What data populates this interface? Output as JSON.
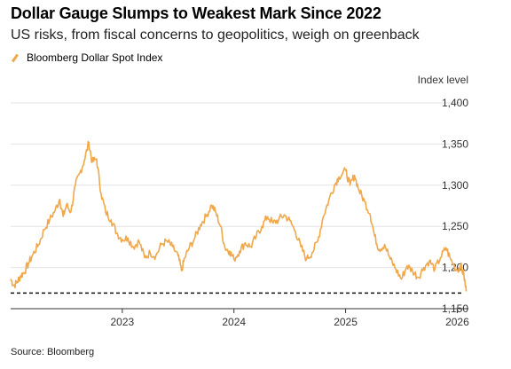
{
  "header": {
    "title": "Dollar Gauge Slumps to Weakest Mark Since 2022",
    "subtitle": "US risks, from fiscal concerns to geopolitics, weigh on greenback"
  },
  "footer": {
    "source": "Source: Bloomberg"
  },
  "chart_data": {
    "type": "line",
    "title": "Dollar Gauge Slumps to Weakest Mark Since 2022",
    "subtitle": "US risks, from fiscal concerns to geopolitics, weigh on greenback",
    "y_unit_label": "Index level",
    "ylim": [
      1150,
      1400
    ],
    "y_ticks": [
      1150,
      1200,
      1250,
      1300,
      1350,
      1400
    ],
    "x_tick_labels": [
      "2023",
      "2024",
      "2025",
      "2026"
    ],
    "xlim": [
      2022.0,
      2026.1
    ],
    "grid": "horizontal",
    "legend_position": "top-left",
    "reference_line": {
      "value": 1169,
      "style": "dashed"
    },
    "series": [
      {
        "name": "Bloomberg Dollar Spot Index",
        "color": "#f0a84a",
        "points": [
          [
            2022.0,
            1186
          ],
          [
            2022.03,
            1178
          ],
          [
            2022.06,
            1183
          ],
          [
            2022.09,
            1190
          ],
          [
            2022.12,
            1194
          ],
          [
            2022.16,
            1205
          ],
          [
            2022.2,
            1216
          ],
          [
            2022.25,
            1228
          ],
          [
            2022.3,
            1246
          ],
          [
            2022.35,
            1258
          ],
          [
            2022.4,
            1270
          ],
          [
            2022.44,
            1283
          ],
          [
            2022.47,
            1262
          ],
          [
            2022.5,
            1276
          ],
          [
            2022.54,
            1268
          ],
          [
            2022.58,
            1300
          ],
          [
            2022.62,
            1315
          ],
          [
            2022.66,
            1330
          ],
          [
            2022.7,
            1352
          ],
          [
            2022.73,
            1328
          ],
          [
            2022.77,
            1332
          ],
          [
            2022.81,
            1290
          ],
          [
            2022.85,
            1268
          ],
          [
            2022.9,
            1258
          ],
          [
            2022.95,
            1242
          ],
          [
            2023.0,
            1234
          ],
          [
            2023.05,
            1236
          ],
          [
            2023.1,
            1225
          ],
          [
            2023.15,
            1232
          ],
          [
            2023.2,
            1212
          ],
          [
            2023.25,
            1218
          ],
          [
            2023.3,
            1214
          ],
          [
            2023.35,
            1228
          ],
          [
            2023.4,
            1232
          ],
          [
            2023.45,
            1225
          ],
          [
            2023.5,
            1214
          ],
          [
            2023.53,
            1196
          ],
          [
            2023.56,
            1212
          ],
          [
            2023.6,
            1224
          ],
          [
            2023.65,
            1236
          ],
          [
            2023.7,
            1252
          ],
          [
            2023.75,
            1262
          ],
          [
            2023.8,
            1276
          ],
          [
            2023.84,
            1266
          ],
          [
            2023.88,
            1250
          ],
          [
            2023.92,
            1224
          ],
          [
            2023.96,
            1220
          ],
          [
            2024.0,
            1210
          ],
          [
            2024.05,
            1220
          ],
          [
            2024.1,
            1230
          ],
          [
            2024.15,
            1225
          ],
          [
            2024.2,
            1238
          ],
          [
            2024.25,
            1250
          ],
          [
            2024.3,
            1262
          ],
          [
            2024.35,
            1254
          ],
          [
            2024.4,
            1258
          ],
          [
            2024.45,
            1264
          ],
          [
            2024.5,
            1257
          ],
          [
            2024.55,
            1244
          ],
          [
            2024.6,
            1225
          ],
          [
            2024.65,
            1210
          ],
          [
            2024.7,
            1218
          ],
          [
            2024.75,
            1232
          ],
          [
            2024.8,
            1262
          ],
          [
            2024.85,
            1282
          ],
          [
            2024.9,
            1300
          ],
          [
            2024.94,
            1310
          ],
          [
            2025.0,
            1318
          ],
          [
            2025.04,
            1300
          ],
          [
            2025.08,
            1312
          ],
          [
            2025.12,
            1294
          ],
          [
            2025.17,
            1280
          ],
          [
            2025.22,
            1265
          ],
          [
            2025.26,
            1238
          ],
          [
            2025.3,
            1222
          ],
          [
            2025.35,
            1228
          ],
          [
            2025.4,
            1210
          ],
          [
            2025.45,
            1198
          ],
          [
            2025.5,
            1186
          ],
          [
            2025.55,
            1202
          ],
          [
            2025.6,
            1196
          ],
          [
            2025.65,
            1188
          ],
          [
            2025.7,
            1200
          ],
          [
            2025.75,
            1208
          ],
          [
            2025.8,
            1198
          ],
          [
            2025.85,
            1212
          ],
          [
            2025.9,
            1224
          ],
          [
            2025.94,
            1210
          ],
          [
            2026.0,
            1196
          ],
          [
            2026.03,
            1203
          ],
          [
            2026.06,
            1190
          ],
          [
            2026.08,
            1171
          ]
        ]
      }
    ]
  }
}
